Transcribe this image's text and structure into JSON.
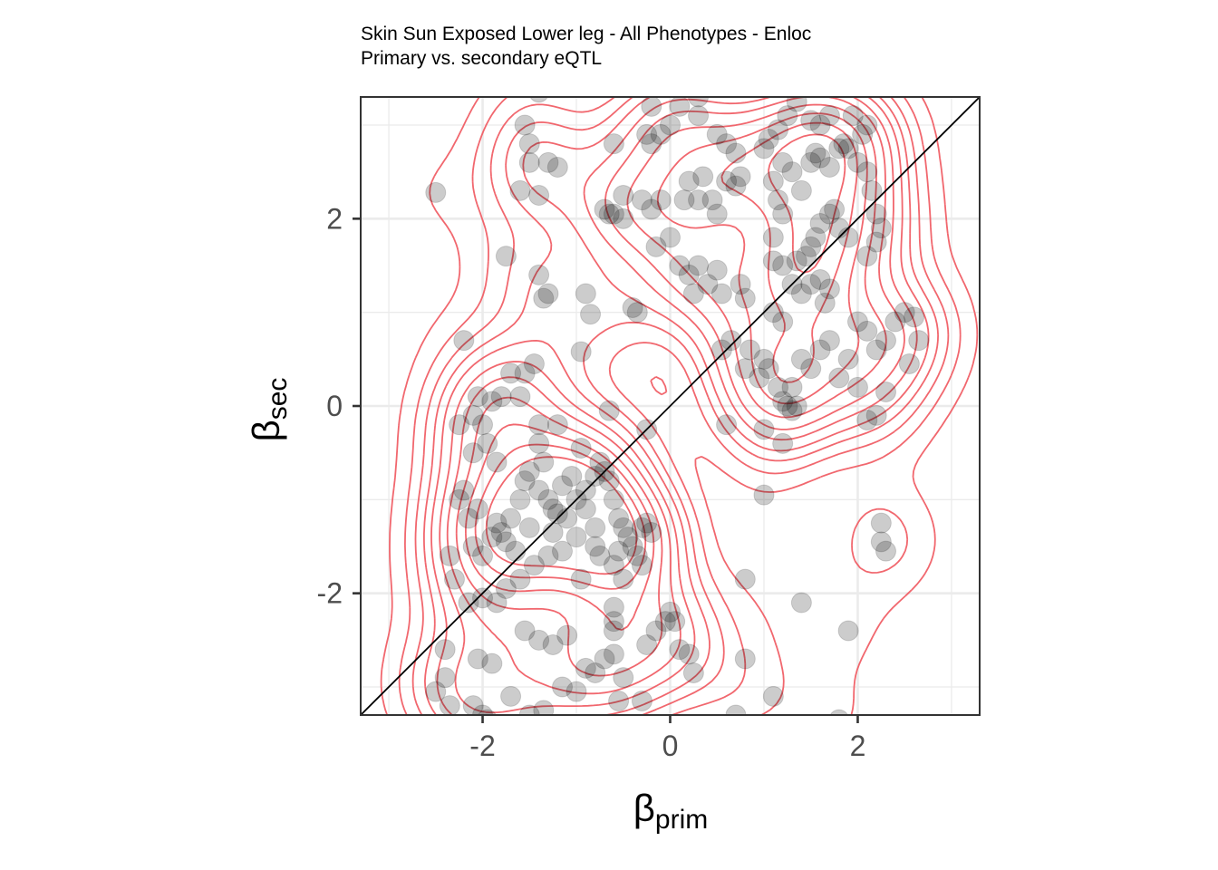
{
  "chart_data": {
    "type": "scatter",
    "title": "Skin Sun Exposed Lower leg - All Phenotypes - Enloc",
    "subtitle": "Primary vs. secondary eQTL",
    "xlabel": {
      "symbol": "β",
      "sub": "prim"
    },
    "ylabel": {
      "symbol": "β",
      "sub": "sec"
    },
    "xlim": [
      -3.3,
      3.3
    ],
    "ylim": [
      -3.3,
      3.3
    ],
    "x_ticks": [
      -2,
      0,
      2
    ],
    "x_tick_labels": [
      "-2",
      "0",
      "2"
    ],
    "y_ticks": [
      -2,
      0,
      2
    ],
    "y_tick_labels": [
      "-2",
      "0",
      "2"
    ],
    "grid": true,
    "reference_line": {
      "slope": 1,
      "intercept": 0,
      "color": "#000000"
    },
    "contour_color": "#F0575E",
    "point_color": "#000000",
    "point_alpha": 0.2,
    "points": [
      [
        -2.5,
        2.28
      ],
      [
        -1.6,
        2.3
      ],
      [
        -1.4,
        2.25
      ],
      [
        -1.5,
        2.6
      ],
      [
        -1.5,
        2.8
      ],
      [
        -1.3,
        2.6
      ],
      [
        -1.2,
        2.55
      ],
      [
        -1.55,
        3.0
      ],
      [
        -1.4,
        3.35
      ],
      [
        -1.75,
        1.6
      ],
      [
        -1.4,
        1.4
      ],
      [
        -1.35,
        1.15
      ],
      [
        -1.3,
        1.2
      ],
      [
        -0.9,
        1.2
      ],
      [
        -0.85,
        0.98
      ],
      [
        -0.95,
        0.58
      ],
      [
        -2.2,
        0.7
      ],
      [
        -0.6,
        2.8
      ],
      [
        -0.5,
        2.25
      ],
      [
        -0.6,
        2.05
      ],
      [
        -0.65,
        2.05
      ],
      [
        -0.7,
        2.1
      ],
      [
        -0.5,
        2.0
      ],
      [
        -0.3,
        2.2
      ],
      [
        -0.2,
        2.1
      ],
      [
        -0.1,
        2.2
      ],
      [
        0.15,
        2.2
      ],
      [
        0.3,
        2.2
      ],
      [
        0.45,
        2.2
      ],
      [
        0.5,
        2.05
      ],
      [
        0.6,
        2.4
      ],
      [
        0.7,
        2.35
      ],
      [
        0.75,
        2.45
      ],
      [
        -0.2,
        2.8
      ],
      [
        -0.1,
        2.9
      ],
      [
        0.0,
        3.0
      ],
      [
        0.1,
        3.2
      ],
      [
        0.3,
        3.1
      ],
      [
        0.3,
        3.3
      ],
      [
        0.5,
        2.9
      ],
      [
        0.6,
        2.8
      ],
      [
        0.7,
        2.7
      ],
      [
        -0.2,
        3.2
      ],
      [
        -0.25,
        2.9
      ],
      [
        0.2,
        2.4
      ],
      [
        0.35,
        2.45
      ],
      [
        -0.15,
        1.7
      ],
      [
        0.0,
        1.8
      ],
      [
        0.1,
        1.5
      ],
      [
        0.2,
        1.4
      ],
      [
        0.3,
        1.5
      ],
      [
        -0.4,
        1.05
      ],
      [
        -0.35,
        1.0
      ],
      [
        0.25,
        1.2
      ],
      [
        0.4,
        1.3
      ],
      [
        0.5,
        1.45
      ],
      [
        0.55,
        1.2
      ],
      [
        0.75,
        1.3
      ],
      [
        0.8,
        1.15
      ],
      [
        0.55,
        0.6
      ],
      [
        0.65,
        0.7
      ],
      [
        0.8,
        0.4
      ],
      [
        0.85,
        0.6
      ],
      [
        0.95,
        0.3
      ],
      [
        1.0,
        0.5
      ],
      [
        0.6,
        -0.2
      ],
      [
        1.0,
        -0.25
      ],
      [
        1.2,
        -0.4
      ],
      [
        1.0,
        -0.95
      ],
      [
        0.8,
        -1.85
      ],
      [
        0.8,
        -2.7
      ],
      [
        1.1,
        -3.1
      ],
      [
        0.7,
        -3.3
      ],
      [
        1.4,
        -2.1
      ],
      [
        1.9,
        -2.4
      ],
      [
        2.25,
        -1.25
      ],
      [
        2.25,
        -1.45
      ],
      [
        2.3,
        -1.55
      ],
      [
        1.8,
        -3.35
      ],
      [
        1.1,
        1.0
      ],
      [
        1.2,
        0.9
      ],
      [
        1.3,
        1.3
      ],
      [
        1.4,
        1.2
      ],
      [
        1.5,
        1.3
      ],
      [
        1.6,
        1.35
      ],
      [
        1.65,
        1.1
      ],
      [
        1.7,
        1.25
      ],
      [
        1.4,
        0.5
      ],
      [
        1.5,
        0.4
      ],
      [
        1.6,
        0.6
      ],
      [
        1.7,
        0.7
      ],
      [
        1.8,
        0.3
      ],
      [
        1.9,
        0.5
      ],
      [
        2.0,
        0.2
      ],
      [
        2.0,
        0.9
      ],
      [
        2.1,
        0.8
      ],
      [
        2.2,
        0.6
      ],
      [
        2.3,
        0.7
      ],
      [
        2.4,
        0.9
      ],
      [
        2.5,
        1.0
      ],
      [
        2.6,
        0.95
      ],
      [
        2.65,
        0.7
      ],
      [
        2.55,
        0.45
      ],
      [
        2.3,
        0.15
      ],
      [
        2.2,
        -0.1
      ],
      [
        2.1,
        -0.15
      ],
      [
        1.3,
        0.2
      ],
      [
        1.35,
        0.0
      ],
      [
        1.25,
        0.0
      ],
      [
        1.3,
        -0.05
      ],
      [
        1.2,
        0.05
      ],
      [
        1.15,
        0.2
      ],
      [
        1.05,
        0.4
      ],
      [
        1.1,
        2.4
      ],
      [
        1.2,
        2.6
      ],
      [
        1.3,
        2.5
      ],
      [
        1.4,
        2.3
      ],
      [
        1.5,
        2.6
      ],
      [
        1.55,
        2.7
      ],
      [
        1.6,
        2.65
      ],
      [
        1.7,
        2.55
      ],
      [
        1.8,
        2.75
      ],
      [
        1.85,
        2.8
      ],
      [
        1.9,
        2.75
      ],
      [
        2.0,
        2.6
      ],
      [
        2.1,
        2.5
      ],
      [
        2.15,
        2.3
      ],
      [
        2.2,
        2.05
      ],
      [
        2.25,
        1.9
      ],
      [
        2.2,
        1.75
      ],
      [
        2.1,
        1.6
      ],
      [
        1.9,
        1.8
      ],
      [
        1.8,
        1.9
      ],
      [
        1.75,
        2.1
      ],
      [
        1.7,
        2.05
      ],
      [
        1.6,
        1.95
      ],
      [
        1.55,
        1.8
      ],
      [
        1.5,
        1.7
      ],
      [
        1.45,
        1.6
      ],
      [
        1.35,
        1.55
      ],
      [
        1.2,
        1.5
      ],
      [
        1.1,
        1.55
      ],
      [
        1.1,
        1.8
      ],
      [
        1.2,
        2.05
      ],
      [
        1.15,
        2.2
      ],
      [
        1.0,
        2.75
      ],
      [
        1.05,
        2.85
      ],
      [
        1.15,
        2.95
      ],
      [
        1.25,
        3.1
      ],
      [
        1.35,
        3.25
      ],
      [
        1.5,
        3.05
      ],
      [
        1.6,
        3.0
      ],
      [
        1.7,
        3.1
      ],
      [
        1.95,
        3.1
      ],
      [
        2.1,
        3.0
      ],
      [
        2.05,
        2.9
      ],
      [
        -2.0,
        -0.2
      ],
      [
        -1.9,
        0.05
      ],
      [
        -1.8,
        0.1
      ],
      [
        -2.05,
        0.1
      ],
      [
        -1.95,
        -0.4
      ],
      [
        -2.1,
        -0.5
      ],
      [
        -1.85,
        -0.6
      ],
      [
        -2.2,
        -0.9
      ],
      [
        -2.15,
        -1.2
      ],
      [
        -2.1,
        -1.5
      ],
      [
        -2.0,
        -1.6
      ],
      [
        -1.9,
        -1.4
      ],
      [
        -1.8,
        -1.35
      ],
      [
        -1.7,
        -1.2
      ],
      [
        -1.6,
        -1.0
      ],
      [
        -1.55,
        -0.8
      ],
      [
        -1.5,
        -0.7
      ],
      [
        -1.4,
        -0.9
      ],
      [
        -1.3,
        -1.0
      ],
      [
        -1.25,
        -1.1
      ],
      [
        -1.2,
        -1.15
      ],
      [
        -1.1,
        -1.2
      ],
      [
        -1.0,
        -1.0
      ],
      [
        -0.9,
        -0.9
      ],
      [
        -0.8,
        -0.75
      ],
      [
        -0.75,
        -0.6
      ],
      [
        -0.7,
        -0.7
      ],
      [
        -0.65,
        -0.8
      ],
      [
        -0.6,
        -1.0
      ],
      [
        -0.55,
        -1.2
      ],
      [
        -0.5,
        -1.3
      ],
      [
        -0.45,
        -1.4
      ],
      [
        -0.4,
        -1.5
      ],
      [
        -0.35,
        -1.6
      ],
      [
        -0.3,
        -1.3
      ],
      [
        -0.25,
        -1.25
      ],
      [
        -0.2,
        -1.35
      ],
      [
        -0.3,
        -1.7
      ],
      [
        -0.5,
        -1.85
      ],
      [
        -0.6,
        -1.7
      ],
      [
        -0.8,
        -1.5
      ],
      [
        -1.0,
        -1.4
      ],
      [
        -1.15,
        -1.55
      ],
      [
        -1.3,
        -1.6
      ],
      [
        -1.45,
        -1.7
      ],
      [
        -1.6,
        -1.85
      ],
      [
        -1.75,
        -1.95
      ],
      [
        -1.85,
        -2.1
      ],
      [
        -2.0,
        -2.05
      ],
      [
        -2.15,
        -2.1
      ],
      [
        -2.3,
        -1.85
      ],
      [
        -2.35,
        -1.6
      ],
      [
        -1.55,
        -2.4
      ],
      [
        -1.4,
        -2.5
      ],
      [
        -1.25,
        -2.55
      ],
      [
        -1.1,
        -2.45
      ],
      [
        -0.9,
        -2.8
      ],
      [
        -0.8,
        -2.85
      ],
      [
        -0.7,
        -2.7
      ],
      [
        -0.6,
        -2.65
      ],
      [
        -0.5,
        -2.9
      ],
      [
        -0.3,
        -3.15
      ],
      [
        -0.55,
        -3.15
      ],
      [
        -0.25,
        -2.55
      ],
      [
        -0.15,
        -2.4
      ],
      [
        -0.05,
        -2.3
      ],
      [
        0.0,
        -2.2
      ],
      [
        0.05,
        -2.3
      ],
      [
        0.2,
        -2.65
      ],
      [
        0.25,
        -2.85
      ],
      [
        0.1,
        -2.6
      ],
      [
        -2.4,
        -2.6
      ],
      [
        -2.4,
        -2.9
      ],
      [
        -2.5,
        -3.05
      ],
      [
        -2.35,
        -3.2
      ],
      [
        -2.1,
        -3.2
      ],
      [
        -2.0,
        -3.3
      ],
      [
        -1.95,
        -3.35
      ],
      [
        -1.7,
        -3.1
      ],
      [
        -1.5,
        -3.3
      ],
      [
        -1.35,
        -3.25
      ],
      [
        -1.15,
        -3.0
      ],
      [
        -1.0,
        -3.05
      ],
      [
        -2.05,
        -2.7
      ],
      [
        -1.9,
        -2.75
      ],
      [
        -0.6,
        -2.15
      ],
      [
        -0.6,
        -2.3
      ],
      [
        -0.6,
        -2.4
      ],
      [
        -0.65,
        -0.05
      ],
      [
        -0.95,
        -0.45
      ],
      [
        -1.4,
        -0.4
      ],
      [
        -1.2,
        -0.2
      ],
      [
        -1.4,
        -0.2
      ],
      [
        -1.6,
        0.1
      ],
      [
        -1.55,
        0.35
      ],
      [
        -1.45,
        0.45
      ],
      [
        -1.7,
        0.35
      ],
      [
        -2.25,
        -0.2
      ],
      [
        -2.1,
        -0.1
      ],
      [
        -2.25,
        -1.0
      ],
      [
        -0.25,
        -0.25
      ],
      [
        -1.35,
        -0.6
      ],
      [
        -1.05,
        -0.75
      ],
      [
        -0.8,
        -1.3
      ],
      [
        -0.9,
        -1.1
      ],
      [
        -1.15,
        -0.85
      ],
      [
        -1.25,
        -1.35
      ],
      [
        -1.5,
        -1.3
      ],
      [
        -1.65,
        -1.55
      ],
      [
        -1.75,
        -1.45
      ],
      [
        -1.85,
        -1.25
      ],
      [
        -2.05,
        -1.1
      ],
      [
        -0.95,
        -1.85
      ],
      [
        -0.75,
        -1.6
      ],
      [
        -0.55,
        -1.55
      ]
    ],
    "contour_levels": [
      0.004,
      0.008,
      0.012,
      0.016,
      0.02,
      0.025,
      0.03,
      0.036,
      0.042,
      0.048,
      0.054
    ]
  }
}
